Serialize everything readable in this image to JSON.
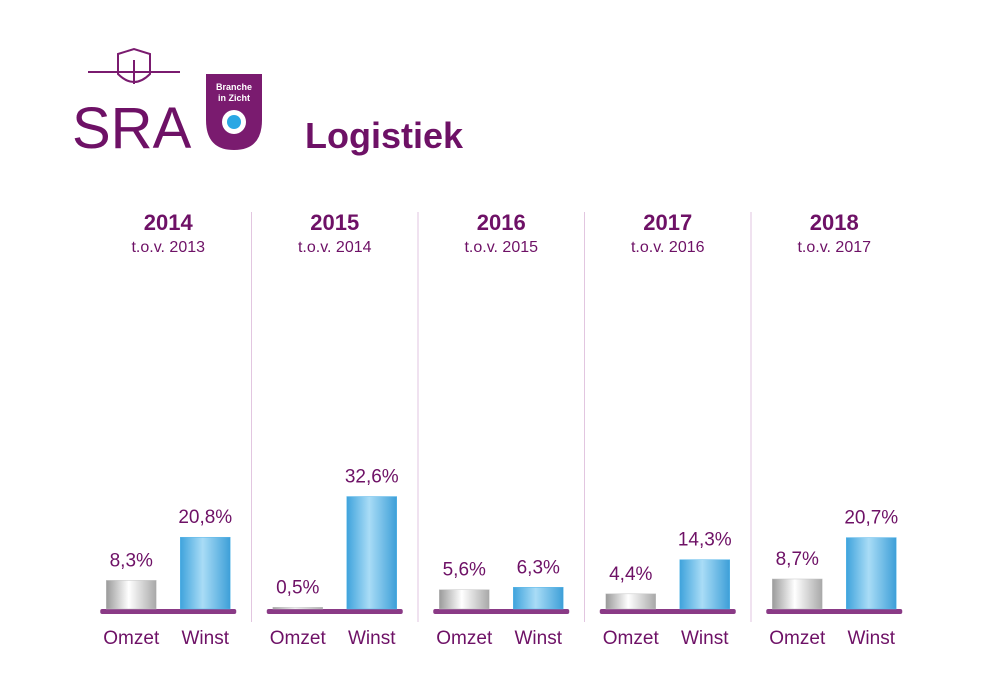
{
  "brand": {
    "name": "SRA",
    "badge_line1": "Branche",
    "badge_line2": "in Zicht"
  },
  "chart_data": {
    "type": "bar",
    "title": "Logistiek",
    "categories": [
      "2014",
      "2015",
      "2016",
      "2017",
      "2018"
    ],
    "subtitles": [
      "t.o.v. 2013",
      "t.o.v. 2014",
      "t.o.v. 2015",
      "t.o.v. 2016",
      "t.o.v. 2017"
    ],
    "series": [
      {
        "name": "Omzet",
        "color": "#c4c4c4",
        "values": [
          8.3,
          0.5,
          5.6,
          4.4,
          8.7
        ],
        "value_labels": [
          "8,3%",
          "0,5%",
          "5,6%",
          "4,4%",
          "8,7%"
        ]
      },
      {
        "name": "Winst",
        "color": "#5bb8ea",
        "values": [
          20.8,
          32.6,
          6.3,
          14.3,
          20.7
        ],
        "value_labels": [
          "20,8%",
          "32,6%",
          "6,3%",
          "14,3%",
          "20,7%"
        ]
      }
    ]
  }
}
